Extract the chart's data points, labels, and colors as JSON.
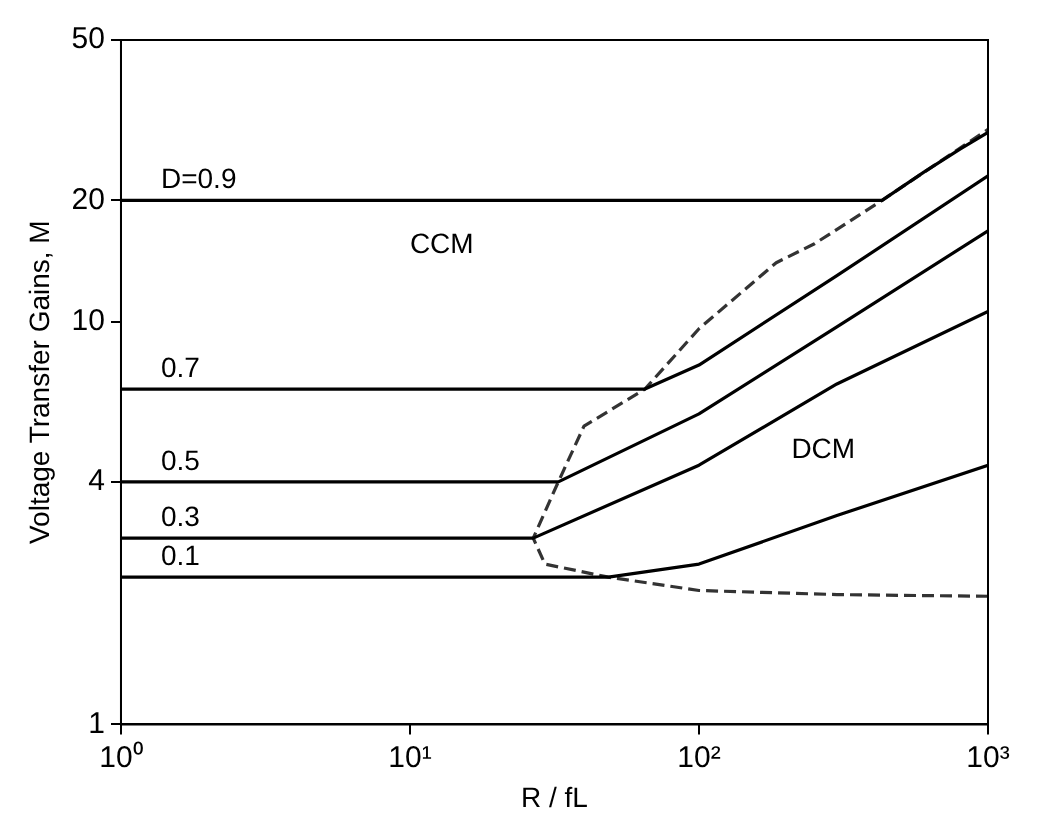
{
  "chart_data": {
    "type": "line",
    "xlabel": "R / fL",
    "ylabel": "Voltage Transfer Gains, M",
    "log": "xy",
    "grid": false,
    "legend": false,
    "marker": "none",
    "xlim": [
      1,
      1000
    ],
    "ylim": [
      1,
      50
    ],
    "xticks": [
      {
        "value": 1,
        "label": "10⁰"
      },
      {
        "value": 10,
        "label": "10¹"
      },
      {
        "value": 100,
        "label": "10²"
      },
      {
        "value": 1000,
        "label": "10³"
      }
    ],
    "yticks": [
      1,
      4,
      10,
      20,
      50
    ],
    "series": [
      {
        "name": "D=0.9",
        "color": "#000000",
        "line_style": "solid",
        "x": [
          1,
          430,
          600,
          800,
          1000
        ],
        "values": [
          20,
          20,
          23.5,
          26.8,
          29.5
        ]
      },
      {
        "name": "0.7",
        "color": "#000000",
        "line_style": "solid",
        "x": [
          1,
          65,
          100,
          300,
          1000
        ],
        "values": [
          6.8,
          6.8,
          7.8,
          13,
          23
        ]
      },
      {
        "name": "0.5",
        "color": "#000000",
        "line_style": "solid",
        "x": [
          1,
          32.6,
          100,
          300,
          1000
        ],
        "values": [
          4,
          4,
          5.9,
          9.7,
          16.8
        ]
      },
      {
        "name": "0.3",
        "color": "#000000",
        "line_style": "solid",
        "x": [
          1,
          26.7,
          100,
          300,
          1000
        ],
        "values": [
          2.9,
          2.9,
          4.4,
          7,
          10.6
        ]
      },
      {
        "name": "0.1",
        "color": "#000000",
        "line_style": "solid",
        "x": [
          1,
          48.6,
          100,
          300,
          1000
        ],
        "values": [
          2.32,
          2.32,
          2.5,
          3.3,
          4.4
        ]
      },
      {
        "color": "#333333",
        "line_style": "dashed",
        "x": [
          1000,
          300,
          100,
          48.6,
          29.3,
          26.7,
          32.6,
          40,
          65,
          100,
          185,
          251,
          430,
          1000
        ],
        "values": [
          2.08,
          2.1,
          2.15,
          2.32,
          2.5,
          2.9,
          4,
          5.5,
          6.8,
          9.6,
          14,
          15.6,
          20,
          30
        ]
      }
    ],
    "annotations": [
      "CCM",
      "DCM"
    ]
  }
}
